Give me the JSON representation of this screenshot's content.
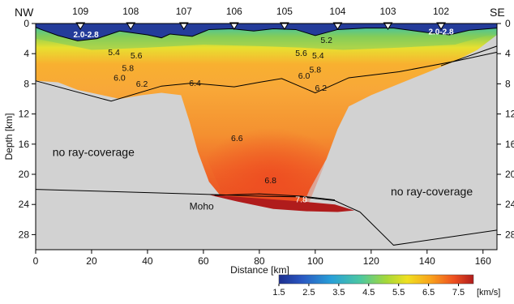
{
  "chart_data": {
    "type": "heatmap",
    "title": "",
    "xlabel": "Distance [km]",
    "ylabel": "Depth [km]",
    "xlim": [
      0,
      165
    ],
    "ylim": [
      30,
      0
    ],
    "x_ticks": [
      0,
      20,
      40,
      60,
      80,
      100,
      120,
      140,
      160
    ],
    "y_ticks": [
      0,
      4,
      8,
      12,
      16,
      20,
      24,
      28
    ],
    "corner_labels": {
      "left": "NW",
      "right": "SE"
    },
    "stations": [
      {
        "label": "109",
        "x": 16,
        "type": "filled"
      },
      {
        "label": "108",
        "x": 34,
        "type": "filled"
      },
      {
        "label": "107",
        "x": 53,
        "type": "open"
      },
      {
        "label": "106",
        "x": 71,
        "type": "filled"
      },
      {
        "label": "105",
        "x": 89,
        "type": "filled"
      },
      {
        "label": "104",
        "x": 108,
        "type": "filled"
      },
      {
        "label": "103",
        "x": 126,
        "type": "open"
      },
      {
        "label": "102",
        "x": 145,
        "type": "open"
      }
    ],
    "surface_layer_labels": [
      {
        "text": "2.0-2.8",
        "x": 18,
        "y": 1.4
      },
      {
        "text": "2.0-2.8",
        "x": 145,
        "y": 1.0
      }
    ],
    "velocity_labels": [
      {
        "text": "5.4",
        "x": 28,
        "y": 4.2
      },
      {
        "text": "5.6",
        "x": 36,
        "y": 4.6
      },
      {
        "text": "5.8",
        "x": 33,
        "y": 6.3
      },
      {
        "text": "6.0",
        "x": 30,
        "y": 7.6
      },
      {
        "text": "6.2",
        "x": 38,
        "y": 8.4
      },
      {
        "text": "6.4",
        "x": 57,
        "y": 8.3
      },
      {
        "text": "5.2",
        "x": 104,
        "y": 2.6
      },
      {
        "text": "5.6",
        "x": 95,
        "y": 4.3
      },
      {
        "text": "5.4",
        "x": 101,
        "y": 4.6
      },
      {
        "text": "5.8",
        "x": 100,
        "y": 6.5
      },
      {
        "text": "6.0",
        "x": 96,
        "y": 7.3
      },
      {
        "text": "6.2",
        "x": 102,
        "y": 8.9
      },
      {
        "text": "6.6",
        "x": 72,
        "y": 15.6
      },
      {
        "text": "6.8",
        "x": 84,
        "y": 21.2
      },
      {
        "text": "7.8",
        "x": 95,
        "y": 23.7
      }
    ],
    "annotations": [
      {
        "text": "no ray-coverage",
        "x": 6,
        "y": 17.6
      },
      {
        "text": "no ray-coverage",
        "x": 127,
        "y": 22.8
      },
      {
        "text": "Moho",
        "x": 55,
        "y": 24.7
      }
    ],
    "colorbar": {
      "ticks": [
        1.5,
        2.5,
        3.5,
        4.5,
        5.5,
        6.5,
        7.5
      ],
      "unit": "[km/s]",
      "range": [
        1.5,
        8.0
      ],
      "colors": [
        "#1d2f8f",
        "#2a58c2",
        "#28a0d8",
        "#4cc8a0",
        "#a4d83a",
        "#f0e020",
        "#f9a21c",
        "#ee5020",
        "#b01c1c"
      ]
    },
    "grid": false
  }
}
